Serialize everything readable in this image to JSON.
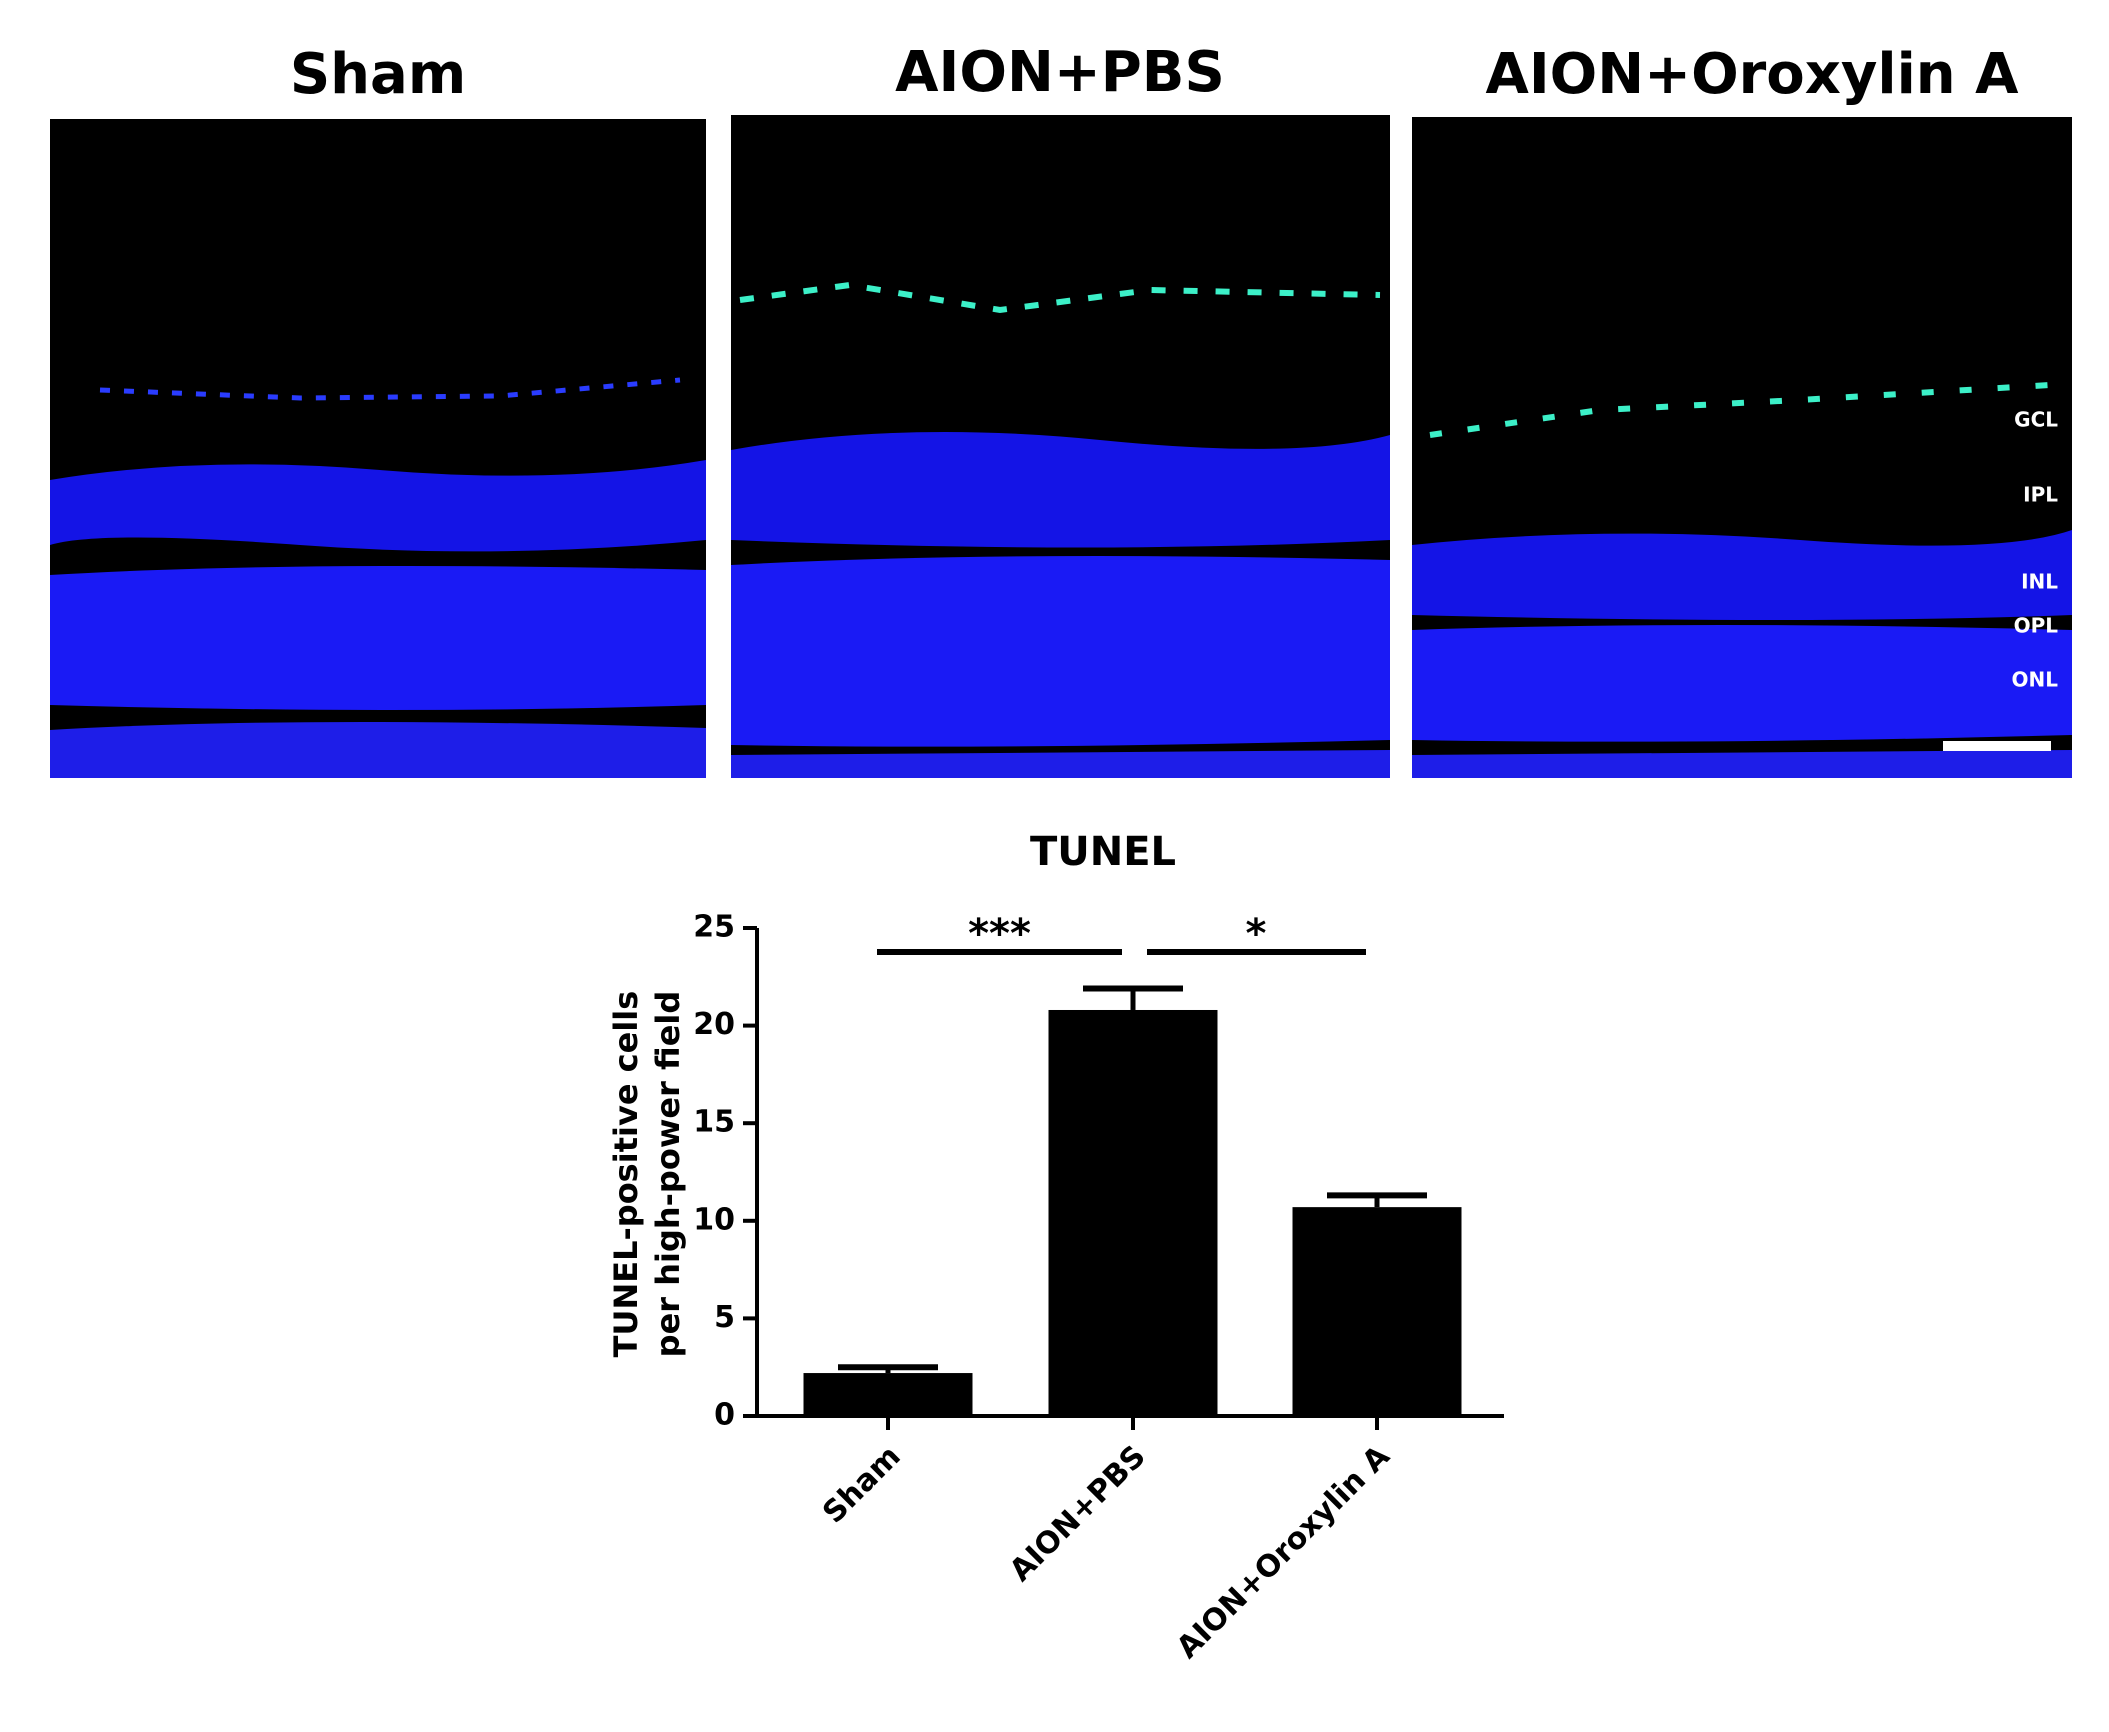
{
  "panels": {
    "titles": [
      "Sham",
      "AION+PBS",
      "AION+Oroxylin A"
    ],
    "layer_labels": [
      "GCL",
      "IPL",
      "INL",
      "OPL",
      "ONL"
    ]
  },
  "chart_data": {
    "type": "bar",
    "title": "TUNEL",
    "y_label": [
      "TUNEL-positive cells",
      "per high-power field"
    ],
    "categories": [
      "Sham",
      "AION+PBS",
      "AION+Oroxylin A"
    ],
    "values": [
      2.2,
      20.8,
      10.7
    ],
    "errors": [
      0.3,
      1.1,
      0.6
    ],
    "color": "#000000",
    "ylim": [
      0,
      25
    ],
    "yticks": [
      0,
      5,
      10,
      15,
      20,
      25
    ],
    "annotations": [
      "***",
      "*"
    ]
  }
}
